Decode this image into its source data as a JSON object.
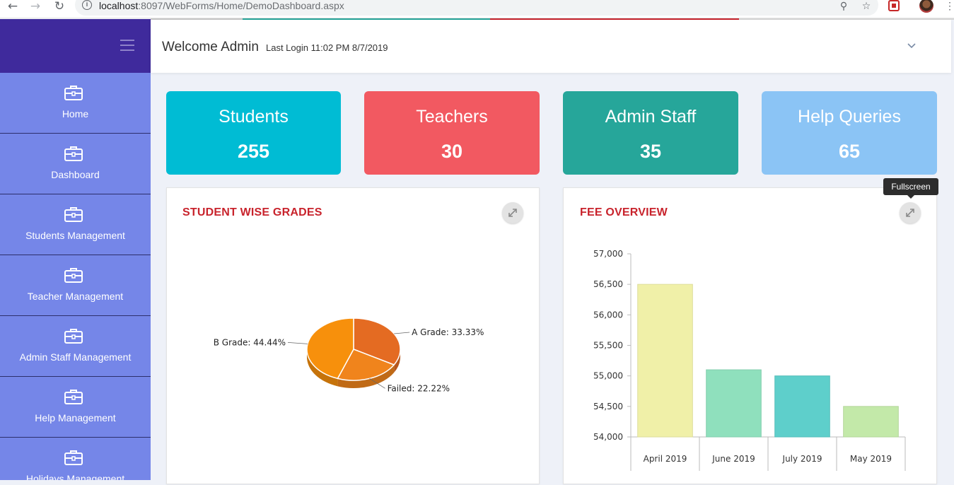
{
  "browser": {
    "back_icon": "back-arrow-icon",
    "forward_icon": "forward-arrow-icon",
    "reload_icon": "reload-icon",
    "url_host": "localhost",
    "url_rest": ":8097/WebForms/Home/DemoDashboard.aspx",
    "zoom_icon": "zoom-icon",
    "star_icon": "star-icon",
    "menu_icon": "more-vert-icon"
  },
  "sidebar": {
    "items": [
      {
        "label": "Home"
      },
      {
        "label": "Dashboard"
      },
      {
        "label": "Students Management"
      },
      {
        "label": "Teacher Management"
      },
      {
        "label": "Admin Staff Management"
      },
      {
        "label": "Help Management"
      },
      {
        "label": "Holidays Management"
      }
    ]
  },
  "header": {
    "welcome": "Welcome Admin",
    "last_login": "Last Login 11:02 PM 8/7/2019"
  },
  "stats": [
    {
      "title": "Students",
      "value": "255",
      "color": "#00bcd4"
    },
    {
      "title": "Teachers",
      "value": "30",
      "color": "#f25961"
    },
    {
      "title": "Admin Staff",
      "value": "35",
      "color": "#26a69a"
    },
    {
      "title": "Help Queries",
      "value": "65",
      "color": "#8bc4f5"
    }
  ],
  "panels": {
    "grades_title": "STUDENT WISE GRADES",
    "fee_title": "FEE OVERVIEW",
    "tooltip": "Fullscreen"
  },
  "colors": {
    "sidebar_top": "#3f2a9c",
    "sidebar": "#7586e8",
    "accent_red": "#c8232c"
  },
  "chart_data": [
    {
      "type": "pie",
      "title": "STUDENT WISE GRADES",
      "slices": [
        {
          "label": "A Grade",
          "value": 33.33,
          "display": "A Grade: 33.33%",
          "color": "#e46b22"
        },
        {
          "label": "Failed",
          "value": 22.22,
          "display": "Failed: 22.22%",
          "color": "#f0841c"
        },
        {
          "label": "B Grade",
          "value": 44.44,
          "display": "B Grade: 44.44%",
          "color": "#f7900c"
        }
      ]
    },
    {
      "type": "bar",
      "title": "FEE OVERVIEW",
      "categories": [
        "April 2019",
        "June 2019",
        "July 2019",
        "May 2019"
      ],
      "values": [
        56500,
        55100,
        55000,
        54500
      ],
      "colors": [
        "#f0f0a8",
        "#8fe0bd",
        "#5ecfcb",
        "#c3e9a9"
      ],
      "ylim": [
        54000,
        57000
      ],
      "yticks": [
        "54,000",
        "54,500",
        "55,000",
        "55,500",
        "56,000",
        "56,500",
        "57,000"
      ],
      "grid": false
    }
  ]
}
